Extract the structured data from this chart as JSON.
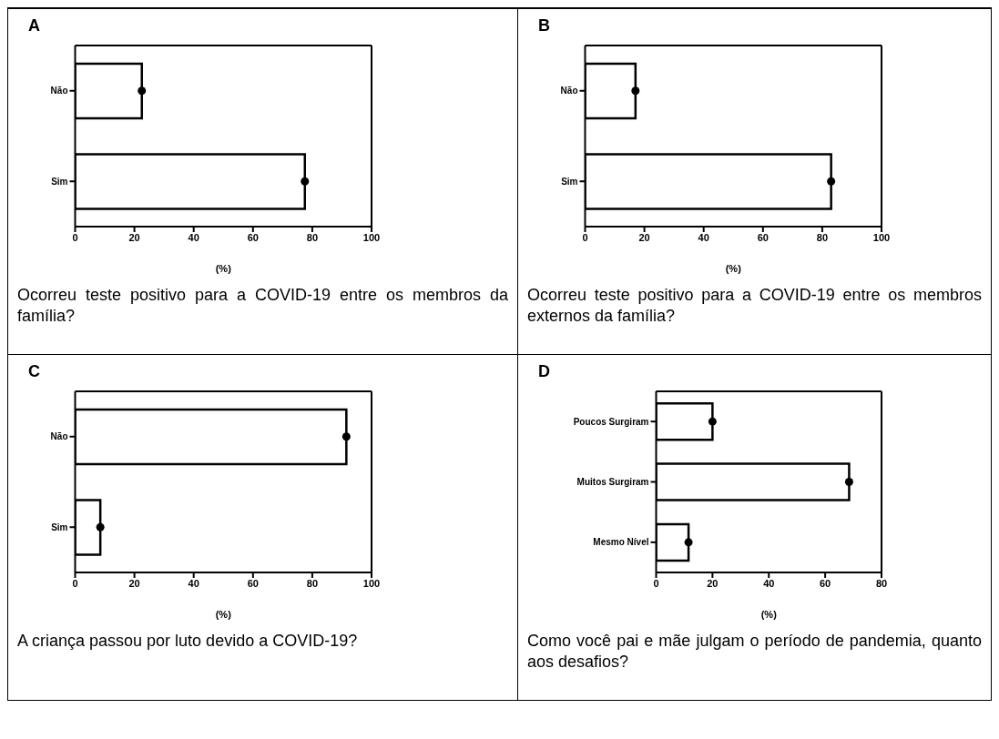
{
  "chart_data": [
    {
      "type": "bar",
      "orientation": "horizontal",
      "title": "A",
      "categories": [
        "Não",
        "Sim"
      ],
      "series": [
        {
          "type": "bar",
          "color": "#ffffff",
          "values": [
            22.5,
            77.5
          ]
        },
        {
          "type": "scatter",
          "color": "#000000",
          "marker": "circle",
          "values": [
            22.5,
            77.5
          ]
        }
      ],
      "xlim": [
        0,
        100
      ],
      "xticks": [
        0,
        20,
        40,
        60,
        80,
        100
      ],
      "xlabel": "(%)",
      "grid": false,
      "legend": false,
      "annotations": [
        "Ocorreu teste positivo para a COVID-19 entre os membros da família?"
      ]
    },
    {
      "type": "bar",
      "orientation": "horizontal",
      "title": "B",
      "categories": [
        "Não",
        "Sim"
      ],
      "series": [
        {
          "type": "bar",
          "color": "#ffffff",
          "values": [
            17,
            83
          ]
        },
        {
          "type": "scatter",
          "color": "#000000",
          "marker": "circle",
          "values": [
            17,
            83
          ]
        }
      ],
      "xlim": [
        0,
        100
      ],
      "xticks": [
        0,
        20,
        40,
        60,
        80,
        100
      ],
      "xlabel": "(%)",
      "grid": false,
      "legend": false,
      "annotations": [
        "Ocorreu teste positivo para a COVID-19 entre os membros externos da família?"
      ]
    },
    {
      "type": "bar",
      "orientation": "horizontal",
      "title": "C",
      "categories": [
        "Não",
        "Sim"
      ],
      "series": [
        {
          "type": "bar",
          "color": "#ffffff",
          "values": [
            91.5,
            8.5
          ]
        },
        {
          "type": "scatter",
          "color": "#000000",
          "marker": "circle",
          "values": [
            91.5,
            8.5
          ]
        }
      ],
      "xlim": [
        0,
        100
      ],
      "xticks": [
        0,
        20,
        40,
        60,
        80,
        100
      ],
      "xlabel": "(%)",
      "grid": false,
      "legend": false,
      "annotations": [
        "A criança passou por luto devido a COVID-19?"
      ]
    },
    {
      "type": "bar",
      "orientation": "horizontal",
      "title": "D",
      "categories": [
        "Poucos Surgiram",
        "Muitos Surgiram",
        "Mesmo Nível"
      ],
      "series": [
        {
          "type": "bar",
          "color": "#ffffff",
          "values": [
            20,
            68.5,
            11.5
          ]
        },
        {
          "type": "scatter",
          "color": "#000000",
          "marker": "circle",
          "values": [
            20,
            68.5,
            11.5
          ]
        }
      ],
      "xlim": [
        0,
        80
      ],
      "xticks": [
        0,
        20,
        40,
        60,
        80
      ],
      "xlabel": "(%)",
      "grid": false,
      "legend": false,
      "annotations": [
        "Como você pai e mãe julgam o período de pandemia, quanto aos desafios?"
      ]
    }
  ]
}
